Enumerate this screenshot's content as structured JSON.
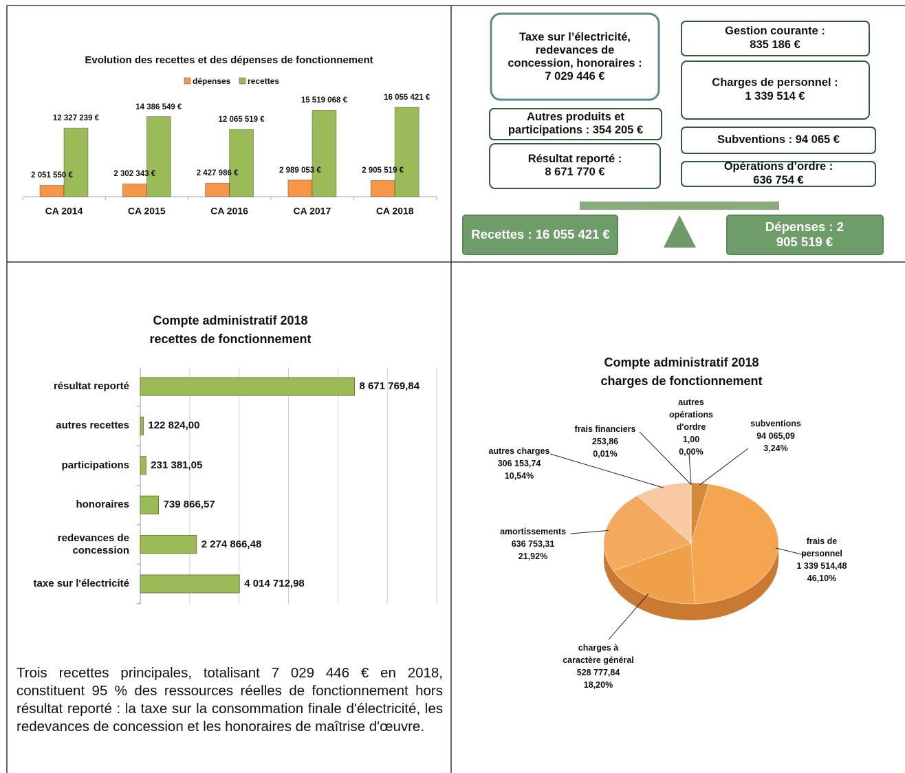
{
  "chart_data": [
    {
      "type": "bar",
      "title": "Evolution des recettes et des dépenses de fonctionnement",
      "categories": [
        "CA 2014",
        "CA 2015",
        "CA 2016",
        "CA 2017",
        "CA 2018"
      ],
      "series": [
        {
          "name": "dépenses",
          "color": "#f79646",
          "values": [
            2051550,
            2302343,
            2427986,
            2989053,
            2905519
          ],
          "value_labels": [
            "2 051 550 €",
            "2 302 343 €",
            "2 427 986 €",
            "2 989 053 €",
            "2 905 519 €"
          ]
        },
        {
          "name": "recettes",
          "color": "#9bbb59",
          "values": [
            12327239,
            14386549,
            12065519,
            15519068,
            16055421
          ],
          "value_labels": [
            "12 327 239 €",
            "14 386 549 €",
            "12 065 519 €",
            "15 519 068 €",
            "16 055 421 €"
          ]
        }
      ]
    },
    {
      "type": "barh",
      "title": "Compte administratif 2018\nrecettes de fonctionnement",
      "categories": [
        "résultat reporté",
        "autres recettes",
        "participations",
        "honoraires",
        "redevances de\nconcession",
        "taxe sur l'électricité"
      ],
      "values": [
        8671769.84,
        122824.0,
        231381.05,
        739866.57,
        2274866.48,
        4014712.98
      ],
      "value_labels": [
        "8 671 769,84",
        "122 824,00",
        "231 381,05",
        "739 866,57",
        "2 274 866,48",
        "4 014 712,98"
      ],
      "color": "#9bbb59",
      "xlim": [
        0,
        12000000
      ],
      "xticks": [
        0,
        2000000,
        4000000,
        6000000,
        8000000,
        10000000,
        12000000
      ],
      "grid": true
    },
    {
      "type": "pie",
      "title": "Compte administratif 2018\ncharges de fonctionnement",
      "categories": [
        "subventions",
        "frais de\npersonnel",
        "charges à\ncaractère général",
        "amortissements",
        "autres charges",
        "frais financiers",
        "autres\nopérations\nd'ordre"
      ],
      "values": [
        94065.09,
        1339514.48,
        528777.84,
        636753.31,
        306153.74,
        253.86,
        1.0
      ],
      "value_labels": [
        "94 065,09",
        "1 339 514,48",
        "528 777,84",
        "636 753,31",
        "306 153,74",
        "253,86",
        "1,00"
      ],
      "percents": [
        3.24,
        46.1,
        18.2,
        21.92,
        10.54,
        0.01,
        0.0
      ],
      "percent_labels": [
        "3,24%",
        "46,10%",
        "18,20%",
        "21,92%",
        "10,54%",
        "0,01%",
        "0,00%"
      ],
      "colors": [
        "#d4893c",
        "#f5a550",
        "#f0a048",
        "#f3aa5e",
        "#f8c9a2",
        "#f3b070",
        "#e89a50"
      ]
    }
  ],
  "diagram": {
    "left": [
      "Taxe sur l’électricité,\nredevances de\nconcession, honoraires :\n7 029 446 €",
      "Autres produits et\nparticipations : 354 205 €",
      "Résultat reporté :\n8 671 770 €"
    ],
    "right": [
      "Gestion courante :\n835 186 €",
      "Charges de personnel :\n1 339 514 €",
      "Subventions : 94 065 €",
      "Opérations d’ordre : 636 754 €"
    ],
    "recettes": "Recettes : 16 055 421 €",
    "depenses": "Dépenses : 2 905 519 €"
  },
  "text": "Trois recettes principales, totalisant 7 029 446 € en 2018, constituent 95 % des ressources réelles de fonctionnement hors résultat reporté : la taxe sur la consommation finale d'électricité, les redevances de concession et les honoraires de maîtrise d'œuvre."
}
